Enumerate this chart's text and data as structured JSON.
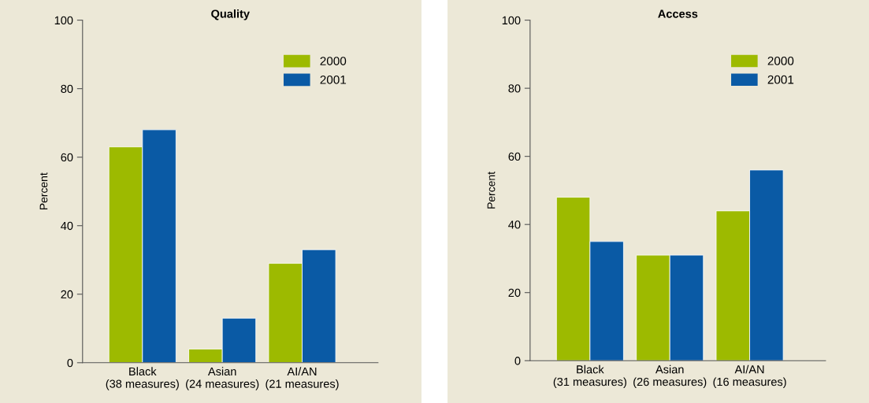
{
  "chart_data": [
    {
      "type": "bar",
      "title": "Quality",
      "ylabel": "Percent",
      "categories": [
        "Black\n(38 measures)",
        "Asian\n(24 measures)",
        "AI/AN\n(21 measures)"
      ],
      "series": [
        {
          "name": "2000",
          "color": "#9dba00",
          "values": [
            63,
            4,
            29
          ]
        },
        {
          "name": "2001",
          "color": "#0a5aa5",
          "values": [
            68,
            13,
            33
          ]
        }
      ],
      "ylim": [
        0,
        100
      ],
      "yticks": [
        0,
        20,
        40,
        60,
        80,
        100
      ],
      "legend": "top right"
    },
    {
      "type": "bar",
      "title": "Access",
      "ylabel": "Percent",
      "categories": [
        "Black\n(31 measures)",
        "Asian\n(26 measures)",
        "AI/AN\n(16 measures)"
      ],
      "series": [
        {
          "name": "2000",
          "color": "#9dba00",
          "values": [
            48,
            31,
            44
          ]
        },
        {
          "name": "2001",
          "color": "#0a5aa5",
          "values": [
            35,
            31,
            56
          ]
        }
      ],
      "ylim": [
        0,
        100
      ],
      "yticks": [
        0,
        20,
        40,
        60,
        80,
        100
      ],
      "legend": "top right"
    }
  ]
}
